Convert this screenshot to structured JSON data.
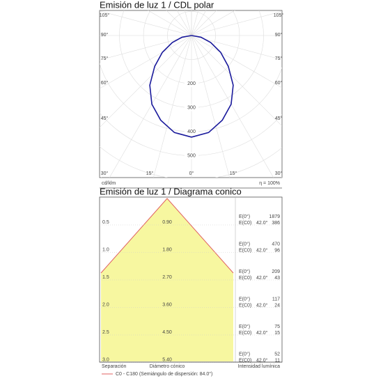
{
  "chart_data": [
    {
      "type": "polar",
      "title": "Emisión de luz 1 / CDL polar",
      "angle_labels": [
        "105°",
        "90°",
        "75°",
        "60°",
        "45°",
        "30°",
        "15°",
        "0°",
        "15°",
        "30°"
      ],
      "rlim": [
        0,
        500
      ],
      "rticks": [
        200,
        300,
        400,
        500
      ],
      "x": [
        0,
        10,
        20,
        30,
        40,
        50,
        60,
        70,
        80,
        90
      ],
      "values": [
        423,
        410,
        375,
        330,
        270,
        200,
        140,
        85,
        40,
        0
      ],
      "color": "#1a1a9c",
      "unit_label": "cd/klm",
      "efficiency": "η = 100%"
    },
    {
      "type": "cone",
      "title": "Emisión de luz 1 / Diagrama conico",
      "separation": [
        "0.5",
        "1.0",
        "1.5",
        "2.0",
        "2.5",
        "3.0"
      ],
      "diameter": [
        "0.90",
        "1.80",
        "2.70",
        "3.60",
        "4.50",
        "5.40"
      ],
      "e_label": "E(0°)",
      "ec_label": "E(C0)",
      "angle": "42.0°",
      "e0": [
        "1879",
        "470",
        "209",
        "117",
        "75",
        "52"
      ],
      "ec0": [
        "386",
        "96",
        "43",
        "24",
        "15",
        "11"
      ],
      "col_separation": "Separación",
      "col_diameter": "Diámetro cónico",
      "col_intensity": "Intensidad lumínica",
      "legend": "C0 - C180 (Semiángulo de dispersión: 84.0°)",
      "color": "#f7f7a0"
    }
  ]
}
